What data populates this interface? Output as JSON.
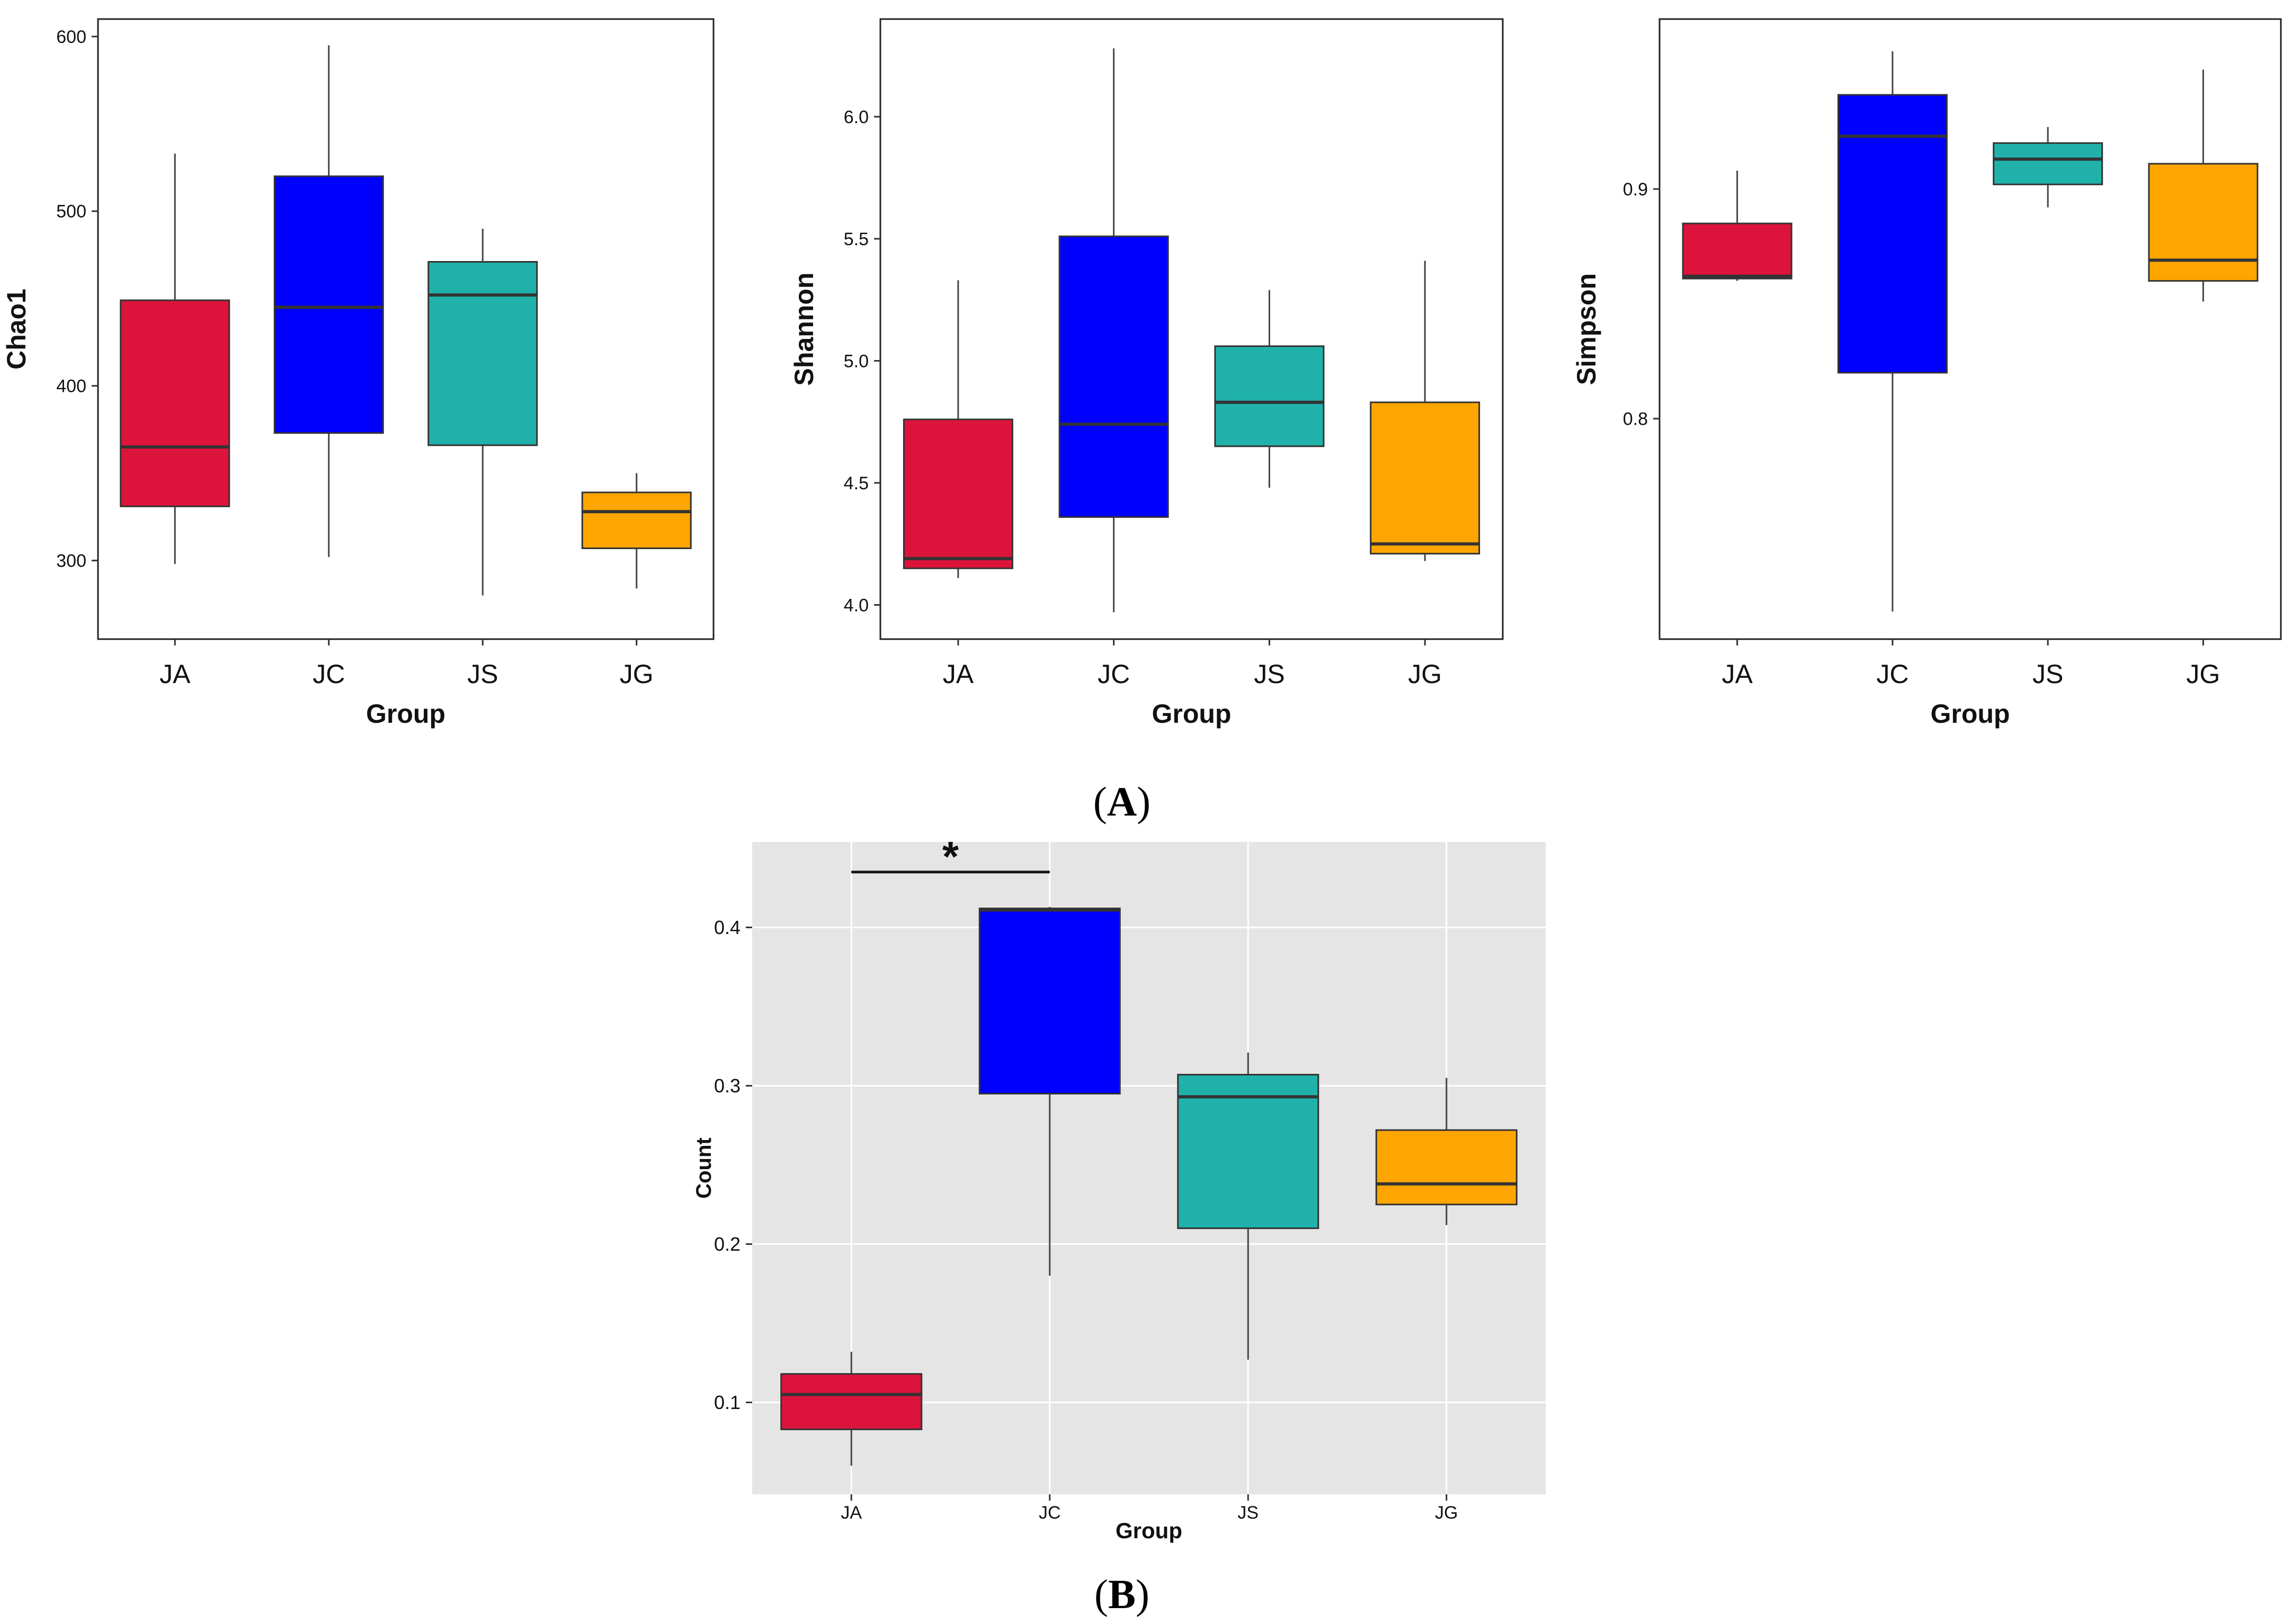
{
  "chart_data": [
    {
      "type": "boxplot",
      "panel": "A",
      "xlabel": "Group",
      "ylabel": "Chao1",
      "categories": [
        "JA",
        "JC",
        "JS",
        "JG"
      ],
      "colors": [
        "#dc143c",
        "#0000ff",
        "#20b2aa",
        "#ffa500"
      ],
      "ylim": [
        255,
        610
      ],
      "yticks": [
        300,
        400,
        500,
        600
      ],
      "ytick_labels": [
        "300",
        "400",
        "500",
        "600"
      ],
      "boxes": [
        {
          "group": "JA",
          "min": 298,
          "q1": 331,
          "median": 365,
          "q3": 449,
          "max": 533
        },
        {
          "group": "JC",
          "min": 302,
          "q1": 373,
          "median": 445,
          "q3": 520,
          "max": 595
        },
        {
          "group": "JS",
          "min": 280,
          "q1": 366,
          "median": 452,
          "q3": 471,
          "max": 490
        },
        {
          "group": "JG",
          "min": 284,
          "q1": 307,
          "median": 328,
          "q3": 339,
          "max": 350
        }
      ]
    },
    {
      "type": "boxplot",
      "panel": "A",
      "xlabel": "Group",
      "ylabel": "Shannon",
      "categories": [
        "JA",
        "JC",
        "JS",
        "JG"
      ],
      "colors": [
        "#dc143c",
        "#0000ff",
        "#20b2aa",
        "#ffa500"
      ],
      "ylim": [
        3.86,
        6.4
      ],
      "yticks": [
        4.0,
        4.5,
        5.0,
        5.5,
        6.0
      ],
      "ytick_labels": [
        "4.0",
        "4.5",
        "5.0",
        "5.5",
        "6.0"
      ],
      "boxes": [
        {
          "group": "JA",
          "min": 4.11,
          "q1": 4.15,
          "median": 4.19,
          "q3": 4.76,
          "max": 5.33
        },
        {
          "group": "JC",
          "min": 3.97,
          "q1": 4.36,
          "median": 4.74,
          "q3": 5.51,
          "max": 6.28
        },
        {
          "group": "JS",
          "min": 4.48,
          "q1": 4.65,
          "median": 4.83,
          "q3": 5.06,
          "max": 5.29
        },
        {
          "group": "JG",
          "min": 4.18,
          "q1": 4.21,
          "median": 4.25,
          "q3": 4.83,
          "max": 5.41
        }
      ]
    },
    {
      "type": "boxplot",
      "panel": "A",
      "xlabel": "Group",
      "ylabel": "Simpson",
      "categories": [
        "JA",
        "JC",
        "JS",
        "JG"
      ],
      "colors": [
        "#dc143c",
        "#0000ff",
        "#20b2aa",
        "#ffa500"
      ],
      "ylim": [
        0.704,
        0.974
      ],
      "yticks": [
        0.8,
        0.9
      ],
      "ytick_labels": [
        "0.8",
        "0.9"
      ],
      "boxes": [
        {
          "group": "JA",
          "min": 0.86,
          "q1": 0.861,
          "median": 0.862,
          "q3": 0.885,
          "max": 0.908
        },
        {
          "group": "JC",
          "min": 0.716,
          "q1": 0.82,
          "median": 0.923,
          "q3": 0.941,
          "max": 0.96
        },
        {
          "group": "JS",
          "min": 0.892,
          "q1": 0.902,
          "median": 0.913,
          "q3": 0.92,
          "max": 0.927
        },
        {
          "group": "JG",
          "min": 0.851,
          "q1": 0.86,
          "median": 0.869,
          "q3": 0.911,
          "max": 0.952
        }
      ]
    },
    {
      "type": "boxplot",
      "panel": "B",
      "xlabel": "Group",
      "ylabel": "Count",
      "categories": [
        "JA",
        "JC",
        "JS",
        "JG"
      ],
      "colors": [
        "#dc143c",
        "#0000ff",
        "#20b2aa",
        "#ffa500"
      ],
      "ylim": [
        0.042,
        0.454
      ],
      "yticks": [
        0.1,
        0.2,
        0.3,
        0.4
      ],
      "ytick_labels": [
        "0.1",
        "0.2",
        "0.3",
        "0.4"
      ],
      "background": "#e5e5e5",
      "boxes": [
        {
          "group": "JA",
          "min": 0.06,
          "q1": 0.083,
          "median": 0.105,
          "q3": 0.118,
          "max": 0.132
        },
        {
          "group": "JC",
          "min": 0.18,
          "q1": 0.295,
          "median": 0.411,
          "q3": 0.412,
          "max": 0.413
        },
        {
          "group": "JS",
          "min": 0.127,
          "q1": 0.21,
          "median": 0.293,
          "q3": 0.307,
          "max": 0.321
        },
        {
          "group": "JG",
          "min": 0.212,
          "q1": 0.225,
          "median": 0.238,
          "q3": 0.272,
          "max": 0.305
        }
      ],
      "significance": {
        "from": "JA",
        "to": "JC",
        "y": 0.435,
        "label": "*"
      }
    }
  ],
  "captions": {
    "panel_a": "A",
    "panel_b": "B"
  }
}
